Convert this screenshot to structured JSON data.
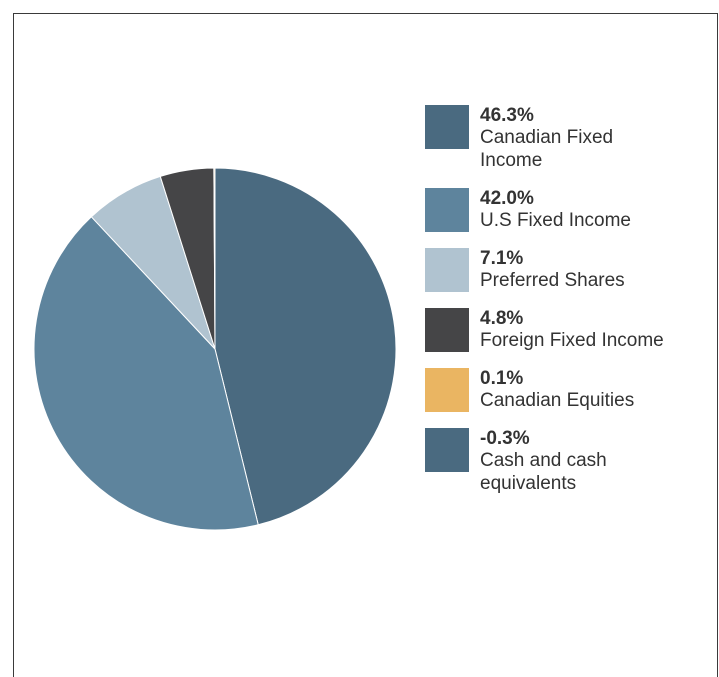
{
  "chart_data": {
    "type": "pie",
    "slices": [
      {
        "value": 46.3,
        "percent_label": "46.3%",
        "label": "Canadian Fixed Income",
        "color": "#4a6a80"
      },
      {
        "value": 42.0,
        "percent_label": "42.0%",
        "label": "U.S Fixed Income",
        "color": "#5e849d"
      },
      {
        "value": 7.1,
        "percent_label": "7.1%",
        "label": "Preferred Shares",
        "color": "#b0c3d0"
      },
      {
        "value": 4.8,
        "percent_label": "4.8%",
        "label": "Foreign Fixed Income",
        "color": "#454547"
      },
      {
        "value": 0.1,
        "percent_label": "0.1%",
        "label": "Canadian Equities",
        "color": "#eab562"
      },
      {
        "value": -0.3,
        "percent_label": "-0.3%",
        "label": "Cash and cash equivalents",
        "color": "#4a6a80"
      }
    ],
    "legend_position": "right"
  }
}
